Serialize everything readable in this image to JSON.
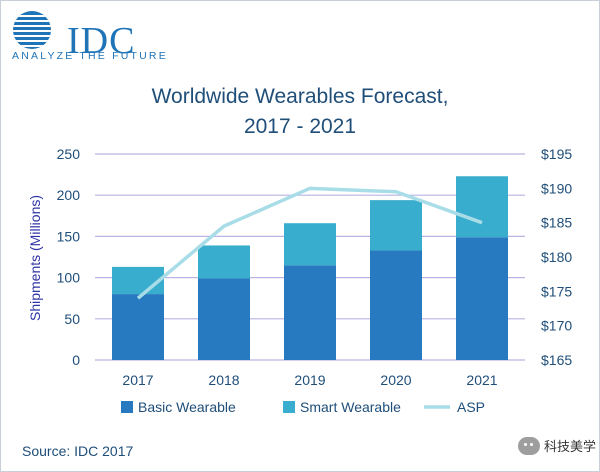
{
  "branding": {
    "logo_text": "IDC",
    "tagline": "ANALYZE THE FUTURE",
    "brand_color": "#1f73b7"
  },
  "source": "Source: IDC 2017",
  "watermark": "科技美学",
  "chart_data": {
    "type": "bar",
    "stacked": true,
    "title_lines": [
      "Worldwide Wearables Forecast,",
      "2017 - 2021"
    ],
    "categories": [
      "2017",
      "2018",
      "2019",
      "2020",
      "2021"
    ],
    "series": [
      {
        "name": "Basic Wearable",
        "color": "#2779c0",
        "values": [
          80,
          99,
          115,
          133,
          149
        ]
      },
      {
        "name": "Smart Wearable",
        "color": "#38adcd",
        "values": [
          33,
          40,
          51,
          61,
          74
        ]
      }
    ],
    "line_series": {
      "name": "ASP",
      "color": "#a8dde8",
      "axis": "right",
      "values": [
        174,
        184.5,
        190,
        189.5,
        185
      ]
    },
    "ylabel": "Shipments (Millions)",
    "ylim": [
      0,
      250
    ],
    "yticks": [
      "0",
      "50",
      "100",
      "150",
      "200",
      "250"
    ],
    "y2lim": [
      165,
      195
    ],
    "y2ticks": [
      "$165",
      "$170",
      "$175",
      "$180",
      "$185",
      "$190",
      "$195"
    ],
    "grid": true,
    "legend_position": "bottom",
    "colors": {
      "text": "#1f4e79",
      "title": "#1f4e79",
      "grid": "#b9b4e3",
      "axis_label": "#2e33a6"
    }
  }
}
